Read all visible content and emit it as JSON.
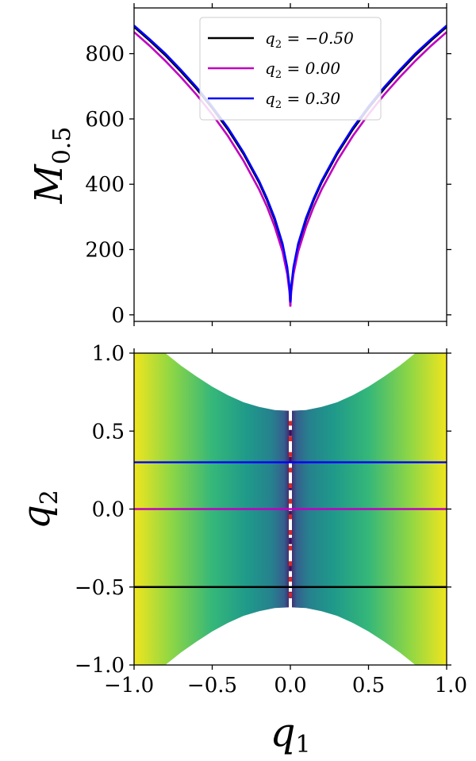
{
  "chart_data": [
    {
      "type": "line",
      "panel": "top",
      "ylabel_main": "M",
      "ylabel_sub": "0.5",
      "xlim": [
        -1.0,
        1.0
      ],
      "ylim": [
        -20,
        940
      ],
      "yticks": [
        0,
        200,
        400,
        600,
        800
      ],
      "ytick_labels": [
        "0",
        "200",
        "400",
        "600",
        "800"
      ],
      "legend_position": "upper-center",
      "series": [
        {
          "name": "q2 = −0.50",
          "label_main": "q",
          "label_sub": "2",
          "label_value": " = −0.50",
          "color": "#000000",
          "x": [
            -1.0,
            -0.9,
            -0.8,
            -0.7,
            -0.6,
            -0.5,
            -0.4,
            -0.3,
            -0.2,
            -0.15,
            -0.1,
            -0.05,
            -0.02,
            -0.005,
            0.0,
            0.005,
            0.02,
            0.05,
            0.1,
            0.15,
            0.2,
            0.3,
            0.4,
            0.5,
            0.6,
            0.7,
            0.8,
            0.9,
            1.0
          ],
          "y": [
            882,
            840,
            795,
            745,
            692,
            633,
            568,
            493,
            405,
            352,
            290,
            212,
            140,
            78,
            30,
            78,
            140,
            212,
            290,
            352,
            405,
            493,
            568,
            633,
            692,
            745,
            795,
            840,
            882
          ]
        },
        {
          "name": "q2 = 0.00",
          "label_main": "q",
          "label_sub": "2",
          "label_value": " = 0.00",
          "color": "#c000c0",
          "x": [
            -1.0,
            -0.9,
            -0.8,
            -0.7,
            -0.6,
            -0.5,
            -0.4,
            -0.3,
            -0.2,
            -0.15,
            -0.1,
            -0.05,
            -0.02,
            -0.005,
            0.0,
            0.005,
            0.02,
            0.05,
            0.1,
            0.15,
            0.2,
            0.3,
            0.4,
            0.5,
            0.6,
            0.7,
            0.8,
            0.9,
            1.0
          ],
          "y": [
            866,
            824,
            778,
            728,
            674,
            614,
            548,
            472,
            384,
            332,
            270,
            194,
            125,
            68,
            25,
            68,
            125,
            194,
            270,
            332,
            384,
            472,
            548,
            614,
            674,
            728,
            778,
            824,
            866
          ]
        },
        {
          "name": "q2 = 0.30",
          "label_main": "q",
          "label_sub": "2",
          "label_value": " = 0.30",
          "color": "#0000ff",
          "x": [
            -1.0,
            -0.9,
            -0.8,
            -0.7,
            -0.6,
            -0.5,
            -0.4,
            -0.3,
            -0.2,
            -0.15,
            -0.1,
            -0.05,
            -0.02,
            -0.005,
            0.0,
            0.005,
            0.02,
            0.05,
            0.1,
            0.15,
            0.2,
            0.3,
            0.4,
            0.5,
            0.6,
            0.7,
            0.8,
            0.9,
            1.0
          ],
          "y": [
            886,
            844,
            800,
            750,
            697,
            638,
            573,
            498,
            410,
            357,
            296,
            218,
            146,
            84,
            38,
            84,
            146,
            218,
            296,
            357,
            410,
            498,
            573,
            638,
            697,
            750,
            800,
            844,
            886
          ]
        }
      ]
    },
    {
      "type": "heatmap",
      "panel": "bottom",
      "xlabel_main": "q",
      "xlabel_sub": "1",
      "ylabel_main": "q",
      "ylabel_sub": "2",
      "xlim": [
        -1.0,
        1.0
      ],
      "ylim": [
        -1.0,
        1.0
      ],
      "xticks": [
        -1.0,
        -0.5,
        0.0,
        0.5,
        1.0
      ],
      "xtick_labels": [
        "−1.0",
        "−0.5",
        "0.0",
        "0.5",
        "1.0"
      ],
      "yticks": [
        -1.0,
        -0.5,
        0.0,
        0.5,
        1.0
      ],
      "ytick_labels": [
        "−1.0",
        "−0.5",
        "0.0",
        "0.5",
        "1.0"
      ],
      "colormap": "viridis",
      "boundary": {
        "q1": [
          0.0,
          0.1,
          0.2,
          0.3,
          0.4,
          0.5,
          0.6,
          0.7,
          0.8,
          0.9,
          1.0
        ],
        "q2_max": [
          0.63,
          0.635,
          0.655,
          0.685,
          0.73,
          0.785,
          0.85,
          0.92,
          1.0,
          1.0,
          1.0
        ]
      },
      "horizontal_lines": [
        {
          "q2": 0.3,
          "color": "#0000ff"
        },
        {
          "q2": 0.0,
          "color": "#c000c0"
        },
        {
          "q2": -0.5,
          "color": "#000000"
        }
      ],
      "vertical_dashed_line": {
        "q1": 0.0,
        "color": "#ffffff"
      },
      "red_markers_q2": [
        -0.55,
        -0.45,
        -0.35,
        -0.25,
        -0.15,
        -0.05,
        0.05,
        0.15,
        0.25,
        0.35,
        0.45,
        0.55
      ]
    }
  ]
}
